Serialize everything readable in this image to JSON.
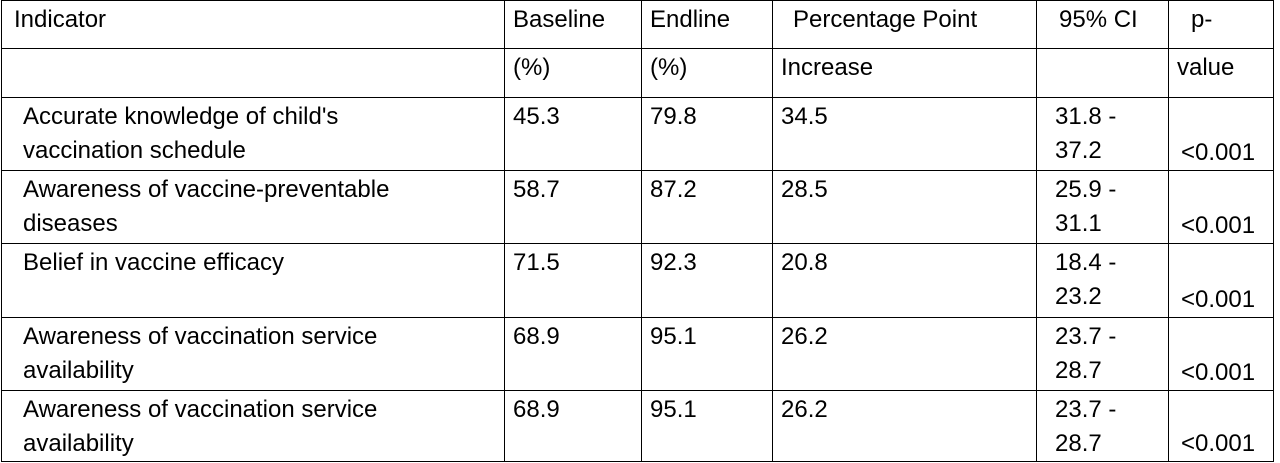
{
  "table": {
    "header_row1": [
      "Indicator",
      "Baseline",
      "Endline",
      "Percentage Point",
      "95% CI",
      "p-"
    ],
    "header_row2": [
      "",
      "(%)",
      "(%)",
      "Increase",
      "",
      "value"
    ],
    "rows": [
      {
        "indicator_line1": "Accurate knowledge of child's",
        "indicator_line2": "vaccination schedule",
        "baseline": "45.3",
        "endline": "79.8",
        "increase": "34.5",
        "ci_line1": "31.8 -",
        "ci_line2": "37.2",
        "p_value": "<0.001"
      },
      {
        "indicator_line1": "Awareness of vaccine-preventable",
        "indicator_line2": "diseases",
        "baseline": "58.7",
        "endline": "87.2",
        "increase": "28.5",
        "ci_line1": "25.9 -",
        "ci_line2": "31.1",
        "p_value": "<0.001"
      },
      {
        "indicator_line1": "Belief in vaccine efficacy",
        "indicator_line2": "",
        "baseline": "71.5",
        "endline": "92.3",
        "increase": "20.8",
        "ci_line1": "18.4 -",
        "ci_line2": "23.2",
        "p_value": "<0.001"
      },
      {
        "indicator_line1": "Awareness of vaccination service",
        "indicator_line2": "availability",
        "baseline": "68.9",
        "endline": "95.1",
        "increase": "26.2",
        "ci_line1": "23.7 -",
        "ci_line2": "28.7",
        "p_value": "<0.001"
      },
      {
        "indicator_line1": "Awareness of vaccination service",
        "indicator_line2": "availability",
        "baseline": "68.9",
        "endline": "95.1",
        "increase": "26.2",
        "ci_line1": "23.7 -",
        "ci_line2": "28.7",
        "p_value": "<0.001"
      }
    ]
  }
}
